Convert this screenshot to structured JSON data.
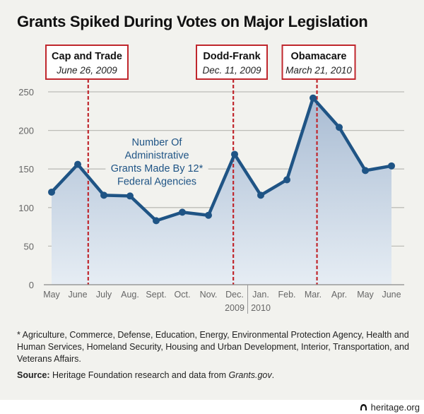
{
  "title": "Grants Spiked During Votes on Major Legislation",
  "chart_data": {
    "type": "area",
    "title": "Grants Spiked During Votes on Major Legislation",
    "xlabel": "",
    "ylabel": "",
    "ylim": [
      0,
      250
    ],
    "yticks": [
      0,
      50,
      100,
      150,
      200,
      250
    ],
    "grid": true,
    "categories": [
      "May",
      "June",
      "July",
      "Aug.",
      "Sept.",
      "Oct.",
      "Nov.",
      "Dec.",
      "Jan.",
      "Feb.",
      "Mar.",
      "Apr.",
      "May",
      "June"
    ],
    "year_labels": [
      {
        "label": "2009",
        "category_index": 7
      },
      {
        "label": "2010",
        "category_index": 8
      }
    ],
    "series": [
      {
        "name": "Number Of Administrative Grants Made By 12* Federal Agencies",
        "values": [
          120,
          156,
          116,
          115,
          83,
          94,
          90,
          169,
          116,
          136,
          242,
          204,
          148,
          154
        ],
        "color": "#1f5485"
      }
    ],
    "series_label_lines": [
      "Number Of",
      "Administrative",
      "Grants Made By 12*",
      "Federal Agencies"
    ],
    "annotations": [
      {
        "title": "Cap and Trade",
        "date": "June 26, 2009",
        "x_position": 1.4
      },
      {
        "title": "Dodd-Frank",
        "date": "Dec. 11, 2009",
        "x_position": 6.95
      },
      {
        "title": "Obamacare",
        "date": "March 21, 2010",
        "x_position": 10.15
      }
    ],
    "annotation_color": "#c0272d"
  },
  "footnote": "* Agriculture, Commerce, Defense, Education, Energy, Environmental Protection Agency, Health and Human Services, Homeland Security, Housing and Urban Development, Interior, Transportation, and Veterans Affairs.",
  "source_label": "Source:",
  "source_text": "Heritage Foundation research and data from ",
  "source_site": "Grants.gov",
  "source_end": ".",
  "brand": "heritage.org"
}
